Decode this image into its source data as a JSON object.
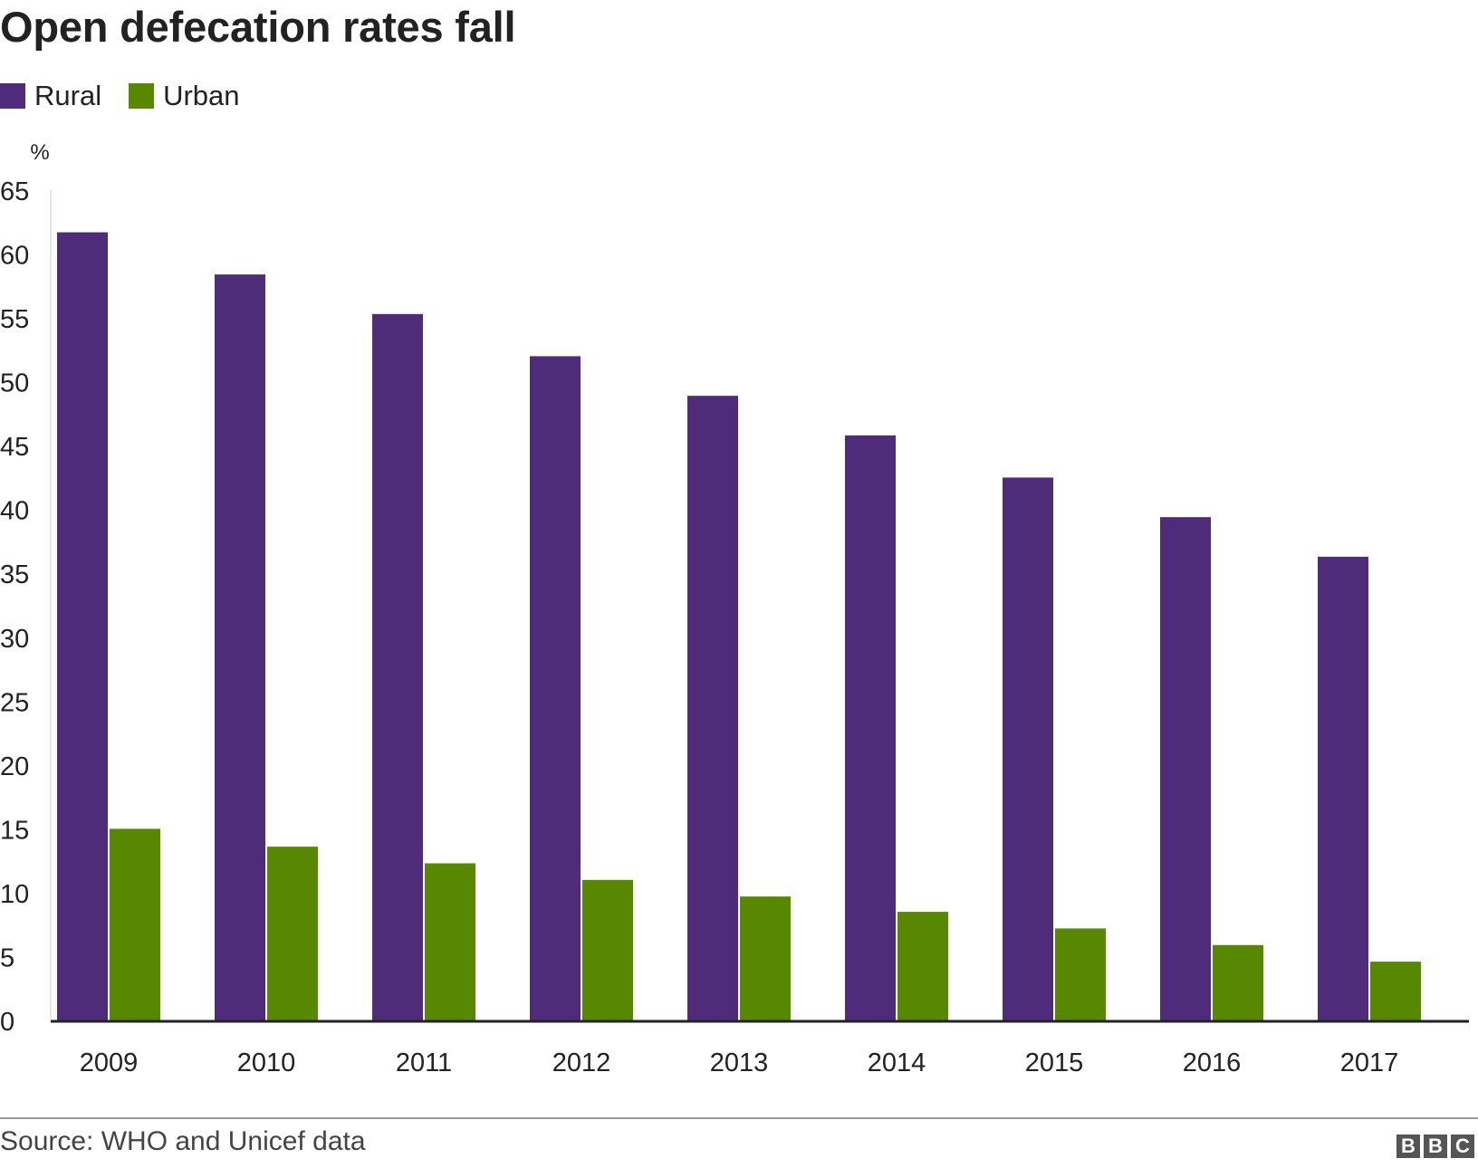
{
  "chart_data": {
    "type": "bar",
    "title": "Open defecation rates fall",
    "ylabel": "%",
    "xlabel": "",
    "ylim": [
      0,
      65
    ],
    "yticks": [
      0,
      5,
      10,
      15,
      20,
      25,
      30,
      35,
      40,
      45,
      50,
      55,
      60,
      65
    ],
    "grid": false,
    "legend_position": "top-left",
    "categories": [
      "2009",
      "2010",
      "2011",
      "2012",
      "2013",
      "2014",
      "2015",
      "2016",
      "2017"
    ],
    "series": [
      {
        "name": "Rural",
        "color": "#4e2c79",
        "values": [
          61.7,
          58.4,
          55.3,
          52.0,
          48.9,
          45.8,
          42.5,
          39.4,
          36.3
        ]
      },
      {
        "name": "Urban",
        "color": "#588702",
        "values": [
          15.0,
          13.6,
          12.3,
          11.0,
          9.7,
          8.5,
          7.2,
          5.9,
          4.6
        ]
      }
    ]
  },
  "footer": {
    "source": "Source: WHO and Unicef data",
    "logo_letters": [
      "B",
      "B",
      "C"
    ]
  }
}
